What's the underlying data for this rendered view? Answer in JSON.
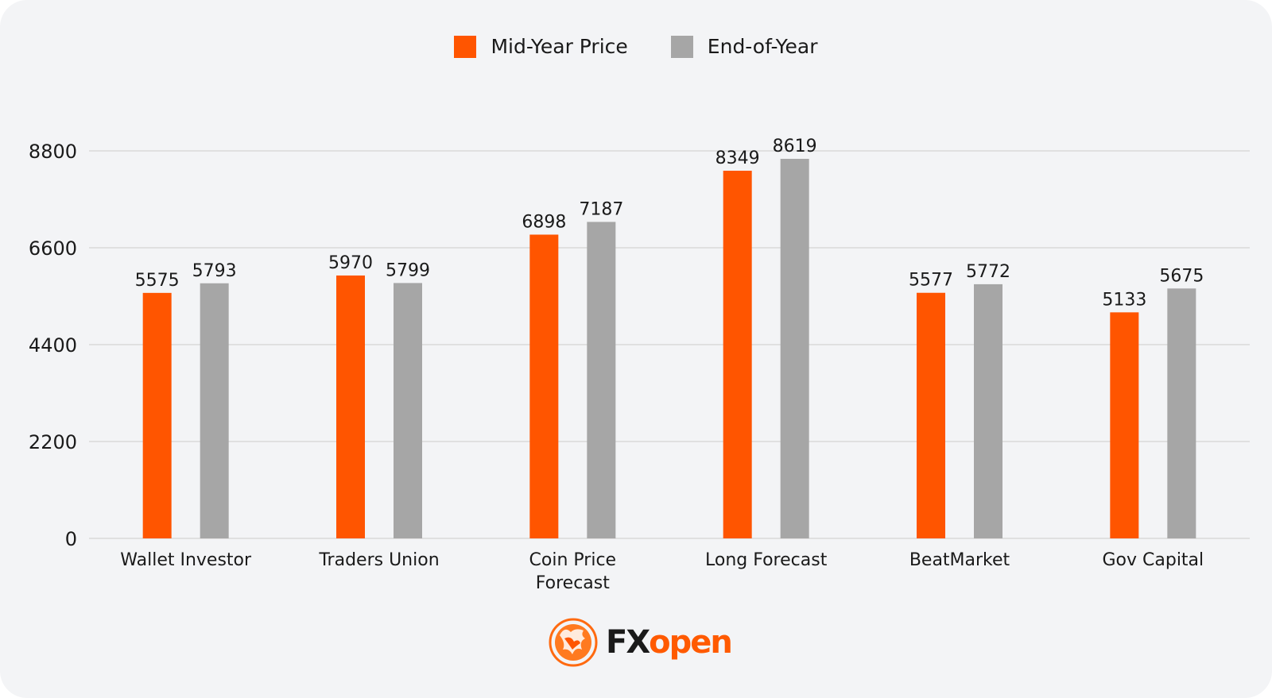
{
  "colors": {
    "mid_year": "#ff5500",
    "end_of_year": "#a6a6a6",
    "grid": "#d9d9d9",
    "background": "#f3f4f6"
  },
  "legend": {
    "mid_year_label": "Mid-Year Price",
    "end_of_year_label": "End-of-Year"
  },
  "logo": {
    "part1": "FX",
    "part2": "open",
    "icon": "bull-emblem-icon"
  },
  "chart_data": {
    "type": "bar",
    "title": "",
    "xlabel": "",
    "ylabel": "",
    "ylim": [
      0,
      8800
    ],
    "yticks": [
      0,
      2200,
      4400,
      6600,
      8800
    ],
    "categories": [
      [
        "Wallet Investor"
      ],
      [
        "Traders Union"
      ],
      [
        "Coin Price",
        "Forecast"
      ],
      [
        "Long Forecast"
      ],
      [
        "BeatMarket"
      ],
      [
        "Gov Capital"
      ]
    ],
    "series": [
      {
        "name": "Mid-Year Price",
        "values": [
          5575,
          5970,
          6898,
          8349,
          5577,
          5133
        ]
      },
      {
        "name": "End-of-Year",
        "values": [
          5793,
          5799,
          7187,
          8619,
          5772,
          5675
        ]
      }
    ],
    "grid": true,
    "legend_position": "top-center"
  }
}
